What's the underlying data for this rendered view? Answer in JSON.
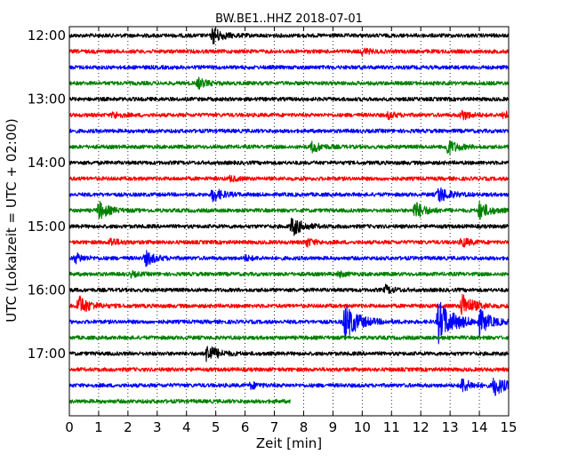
{
  "chart_data": {
    "type": "line",
    "title": "BW.BE1..HHZ 2018-07-01",
    "xlabel": "Zeit  [min]",
    "ylabel": "UTC (Lokalzeit = UTC + 02:00)",
    "xlim": [
      0,
      15
    ],
    "x_ticks": [
      "0",
      "1",
      "2",
      "3",
      "4",
      "5",
      "6",
      "7",
      "8",
      "9",
      "10",
      "11",
      "12",
      "13",
      "14",
      "15"
    ],
    "y_ticks": [
      "12:00",
      "13:00",
      "14:00",
      "15:00",
      "16:00",
      "17:00"
    ],
    "grid": "vertical dotted",
    "colors": [
      "#000000",
      "#ff0000",
      "#0000ff",
      "#008000"
    ],
    "traces": [
      {
        "start": "12:00",
        "color": "#000000",
        "end_min": 15,
        "events": [
          [
            4.9,
            1.0
          ]
        ]
      },
      {
        "start": "12:15",
        "color": "#ff0000",
        "end_min": 15,
        "events": [
          [
            10.0,
            0.4
          ]
        ]
      },
      {
        "start": "12:30",
        "color": "#0000ff",
        "end_min": 15,
        "events": []
      },
      {
        "start": "12:45",
        "color": "#008000",
        "end_min": 15,
        "events": [
          [
            4.4,
            0.6
          ]
        ]
      },
      {
        "start": "13:00",
        "color": "#000000",
        "end_min": 15,
        "events": []
      },
      {
        "start": "13:15",
        "color": "#ff0000",
        "end_min": 15,
        "events": [
          [
            1.5,
            0.4
          ],
          [
            10.9,
            0.4
          ],
          [
            13.4,
            0.6
          ],
          [
            14.8,
            0.5
          ]
        ]
      },
      {
        "start": "13:30",
        "color": "#0000ff",
        "end_min": 15,
        "events": []
      },
      {
        "start": "13:45",
        "color": "#008000",
        "end_min": 15,
        "events": [
          [
            8.3,
            0.7
          ],
          [
            12.9,
            1.0
          ]
        ]
      },
      {
        "start": "14:00",
        "color": "#000000",
        "end_min": 15,
        "events": []
      },
      {
        "start": "14:15",
        "color": "#ff0000",
        "end_min": 15,
        "events": [
          [
            5.5,
            0.3
          ]
        ]
      },
      {
        "start": "14:30",
        "color": "#0000ff",
        "end_min": 15,
        "events": [
          [
            4.9,
            0.9
          ],
          [
            12.6,
            1.1
          ]
        ]
      },
      {
        "start": "14:45",
        "color": "#008000",
        "end_min": 15,
        "events": [
          [
            1.0,
            1.1
          ],
          [
            11.8,
            1.1
          ],
          [
            14.0,
            1.1
          ]
        ]
      },
      {
        "start": "15:00",
        "color": "#000000",
        "end_min": 15,
        "events": [
          [
            7.6,
            1.2
          ]
        ]
      },
      {
        "start": "15:15",
        "color": "#ff0000",
        "end_min": 15,
        "events": [
          [
            1.4,
            0.5
          ],
          [
            8.1,
            0.5
          ],
          [
            13.4,
            0.6
          ]
        ]
      },
      {
        "start": "15:30",
        "color": "#0000ff",
        "end_min": 15,
        "events": [
          [
            0.2,
            0.6
          ],
          [
            2.6,
            0.9
          ],
          [
            6.0,
            0.3
          ]
        ]
      },
      {
        "start": "15:45",
        "color": "#008000",
        "end_min": 15,
        "events": [
          [
            2.1,
            0.3
          ],
          [
            9.2,
            0.3
          ]
        ]
      },
      {
        "start": "16:00",
        "color": "#000000",
        "end_min": 15,
        "events": [
          [
            10.8,
            0.5
          ]
        ]
      },
      {
        "start": "16:15",
        "color": "#ff0000",
        "end_min": 15,
        "events": [
          [
            0.3,
            1.3
          ],
          [
            13.4,
            1.5
          ]
        ]
      },
      {
        "start": "16:30",
        "color": "#0000ff",
        "end_min": 15,
        "events": [
          [
            9.4,
            2.2
          ],
          [
            12.6,
            2.6
          ],
          [
            14.0,
            1.4
          ]
        ]
      },
      {
        "start": "16:45",
        "color": "#008000",
        "end_min": 15,
        "events": []
      },
      {
        "start": "17:00",
        "color": "#000000",
        "end_min": 15,
        "events": [
          [
            4.7,
            1.2
          ]
        ]
      },
      {
        "start": "17:15",
        "color": "#ff0000",
        "end_min": 15,
        "events": []
      },
      {
        "start": "17:30",
        "color": "#0000ff",
        "end_min": 15,
        "events": [
          [
            6.2,
            0.4
          ],
          [
            13.4,
            0.9
          ],
          [
            14.5,
            1.3
          ]
        ]
      },
      {
        "start": "17:45",
        "color": "#008000",
        "end_min": 7.55,
        "events": []
      }
    ]
  }
}
